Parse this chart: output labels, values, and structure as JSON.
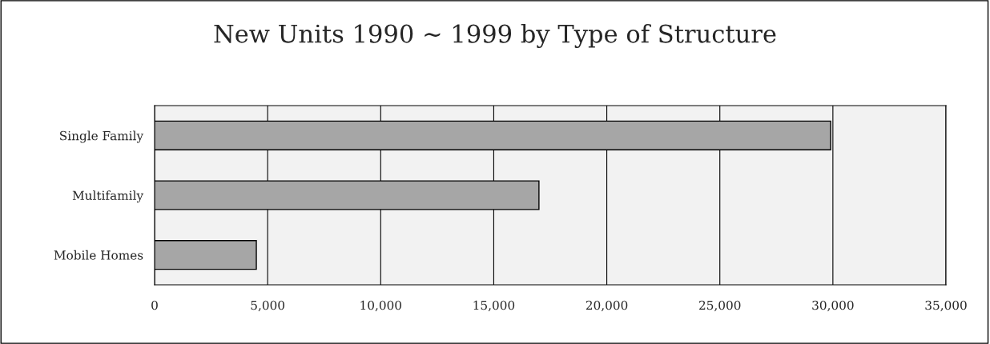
{
  "chart_data": {
    "type": "bar",
    "orientation": "horizontal",
    "title": "New Units 1990 ~ 1999 by Type of Structure",
    "categories": [
      "Single Family",
      "Multifamily",
      "Mobile Homes"
    ],
    "values": [
      29900,
      17000,
      4500
    ],
    "color": "#a6a6a6",
    "xlim": [
      0,
      35000
    ],
    "xticks": [
      {
        "value": 0,
        "label": "0"
      },
      {
        "value": 5000,
        "label": "5,000"
      },
      {
        "value": 10000,
        "label": "10,000"
      },
      {
        "value": 15000,
        "label": "15,000"
      },
      {
        "value": 20000,
        "label": "20,000"
      },
      {
        "value": 25000,
        "label": "25,000"
      },
      {
        "value": 30000,
        "label": "30,000"
      },
      {
        "value": 35000,
        "label": "35,000"
      }
    ],
    "grid": "x",
    "legend": false
  }
}
